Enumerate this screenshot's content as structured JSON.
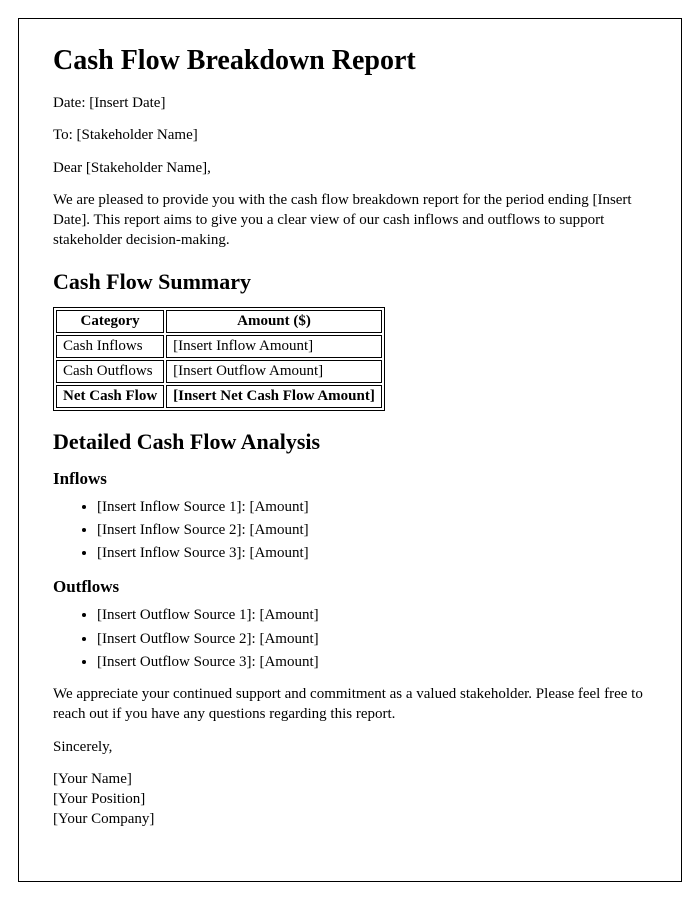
{
  "title": "Cash Flow Breakdown Report",
  "date_line": "Date: [Insert Date]",
  "to_line": "To: [Stakeholder Name]",
  "salutation": "Dear [Stakeholder Name],",
  "intro_paragraph": "We are pleased to provide you with the cash flow breakdown report for the period ending [Insert Date]. This report aims to give you a clear view of our cash inflows and outflows to support stakeholder decision-making.",
  "summary_heading": "Cash Flow Summary",
  "summary_table": {
    "columns": [
      "Category",
      "Amount ($)"
    ],
    "rows": [
      {
        "category": "Cash Inflows",
        "amount": "[Insert Inflow Amount]",
        "bold": false
      },
      {
        "category": "Cash Outflows",
        "amount": "[Insert Outflow Amount]",
        "bold": false
      },
      {
        "category": "Net Cash Flow",
        "amount": "[Insert Net Cash Flow Amount]",
        "bold": true
      }
    ]
  },
  "analysis_heading": "Detailed Cash Flow Analysis",
  "inflows_heading": "Inflows",
  "inflows_items": [
    "[Insert Inflow Source 1]: [Amount]",
    "[Insert Inflow Source 2]: [Amount]",
    "[Insert Inflow Source 3]: [Amount]"
  ],
  "outflows_heading": "Outflows",
  "outflows_items": [
    "[Insert Outflow Source 1]: [Amount]",
    "[Insert Outflow Source 2]: [Amount]",
    "[Insert Outflow Source 3]: [Amount]"
  ],
  "closing_paragraph": "We appreciate your continued support and commitment as a valued stakeholder. Please feel free to reach out if you have any questions regarding this report.",
  "signoff": "Sincerely,",
  "signature": {
    "name": "[Your Name]",
    "position": "[Your Position]",
    "company": "[Your Company]"
  }
}
